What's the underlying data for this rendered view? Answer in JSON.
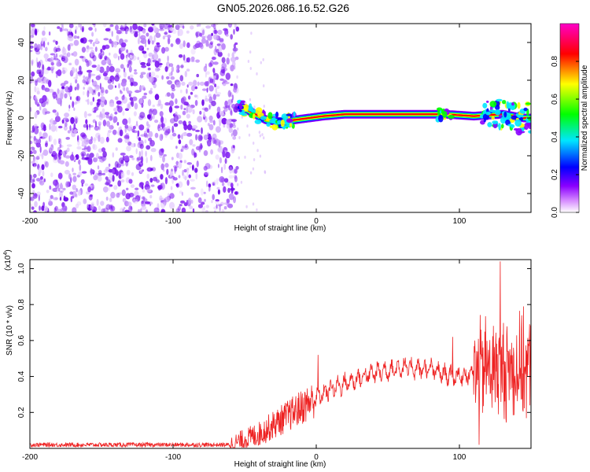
{
  "title": "GN05.2026.086.16.52.G26",
  "chart_data": [
    {
      "type": "heatmap",
      "xlabel": "Height of straight line (km)",
      "ylabel": "Frequency (Hz)",
      "xlim": [
        -200,
        150
      ],
      "ylim": [
        -50,
        50
      ],
      "xticks": [
        -200,
        -100,
        0,
        100
      ],
      "yticks": [
        -40,
        -20,
        0,
        20,
        40
      ],
      "colorbar": {
        "label": "Normalized spectral amplitude",
        "range": [
          0,
          1
        ],
        "ticks": [
          "0.0",
          "0.2",
          "0.4",
          "0.6",
          "0.8"
        ],
        "tick_values": [
          0,
          0.2,
          0.4,
          0.6,
          0.8
        ],
        "colors": [
          "#ffffff",
          "#b900ff",
          "#0000ff",
          "#00e6ff",
          "#00ff00",
          "#ffff00",
          "#ff0000",
          "#ff00c8"
        ]
      },
      "noise_region_km": [
        -200,
        -55
      ],
      "signal_band": {
        "x_start_km": -55,
        "x_end_km": 150,
        "center_freq_hz": [
          [
            -55,
            7
          ],
          [
            -45,
            3
          ],
          [
            -35,
            -1
          ],
          [
            -25,
            -2
          ],
          [
            -15,
            -1
          ],
          [
            -5,
            0
          ],
          [
            5,
            1
          ],
          [
            20,
            2
          ],
          [
            60,
            2
          ],
          [
            90,
            2
          ],
          [
            110,
            1
          ],
          [
            130,
            2
          ],
          [
            145,
            0
          ]
        ]
      }
    },
    {
      "type": "line",
      "xlabel": "Height of straight line (km)",
      "ylabel": "SNR (10 * v/v)",
      "y_scale_note": "(x10",
      "y_scale_exp": "4",
      "y_scale_close": ")",
      "xlim": [
        -200,
        150
      ],
      "ylim": [
        0,
        1.05
      ],
      "xticks": [
        -200,
        -100,
        0,
        100
      ],
      "yticks": [
        "0.2",
        "0.4",
        "0.6",
        "0.8",
        "1.0"
      ],
      "ytick_values": [
        0.2,
        0.4,
        0.6,
        0.8,
        1.0
      ],
      "series": [
        {
          "name": "SNR",
          "color": "#ee2222",
          "envelope": [
            [
              -200,
              0.02
            ],
            [
              -60,
              0.02
            ],
            [
              -40,
              0.08
            ],
            [
              -30,
              0.13
            ],
            [
              -20,
              0.18
            ],
            [
              -10,
              0.23
            ],
            [
              0,
              0.28
            ],
            [
              10,
              0.33
            ],
            [
              20,
              0.36
            ],
            [
              40,
              0.42
            ],
            [
              60,
              0.45
            ],
            [
              80,
              0.44
            ],
            [
              90,
              0.41
            ],
            [
              100,
              0.4
            ],
            [
              110,
              0.42
            ],
            [
              120,
              0.45
            ],
            [
              130,
              0.45
            ],
            [
              140,
              0.44
            ],
            [
              150,
              0.45
            ]
          ]
        }
      ]
    }
  ]
}
